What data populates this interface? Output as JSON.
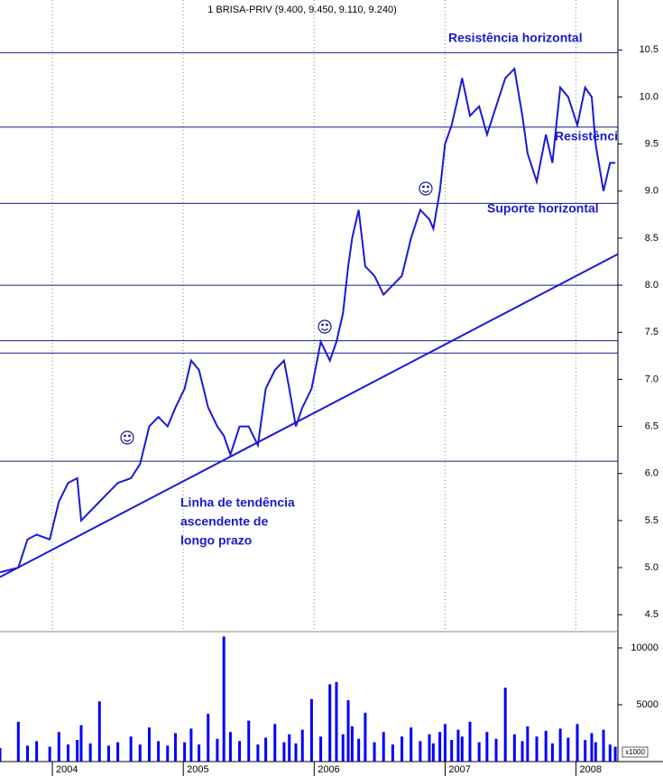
{
  "chart_data": [
    {
      "type": "line",
      "title": "1 BRISA-PRIV (9.400, 9.450, 9.110, 9.240)",
      "color": "#1a1ad8",
      "x": [
        2003.6,
        2003.74,
        2003.81,
        2003.88,
        2003.98,
        2004.05,
        2004.12,
        2004.19,
        2004.22,
        2004.29,
        2004.36,
        2004.43,
        2004.5,
        2004.6,
        2004.67,
        2004.74,
        2004.81,
        2004.88,
        2004.94,
        2005.01,
        2005.06,
        2005.12,
        2005.19,
        2005.26,
        2005.31,
        2005.36,
        2005.43,
        2005.5,
        2005.57,
        2005.63,
        2005.7,
        2005.77,
        2005.81,
        2005.86,
        2005.91,
        2005.98,
        2006.05,
        2006.12,
        2006.17,
        2006.22,
        2006.26,
        2006.29,
        2006.34,
        2006.39,
        2006.46,
        2006.53,
        2006.6,
        2006.67,
        2006.74,
        2006.81,
        2006.88,
        2006.91,
        2006.96,
        2007.0,
        2007.05,
        2007.1,
        2007.13,
        2007.19,
        2007.26,
        2007.32,
        2007.39,
        2007.46,
        2007.53,
        2007.59,
        2007.63,
        2007.7,
        2007.77,
        2007.82,
        2007.88,
        2007.94,
        2008.01,
        2008.07,
        2008.12,
        2008.15,
        2008.21,
        2008.26,
        2008.3
      ],
      "values": [
        4.95,
        5.0,
        5.3,
        5.35,
        5.3,
        5.7,
        5.9,
        5.95,
        5.5,
        5.6,
        5.7,
        5.8,
        5.9,
        5.95,
        6.1,
        6.5,
        6.6,
        6.5,
        6.7,
        6.9,
        7.2,
        7.1,
        6.7,
        6.5,
        6.4,
        6.2,
        6.5,
        6.5,
        6.3,
        6.9,
        7.1,
        7.2,
        6.9,
        6.5,
        6.7,
        6.9,
        7.4,
        7.2,
        7.4,
        7.7,
        8.2,
        8.5,
        8.8,
        8.2,
        8.1,
        7.9,
        8.0,
        8.1,
        8.5,
        8.8,
        8.7,
        8.6,
        9.0,
        9.5,
        9.7,
        10.0,
        10.2,
        9.8,
        9.9,
        9.6,
        9.9,
        10.2,
        10.3,
        9.8,
        9.4,
        9.1,
        9.6,
        9.3,
        10.1,
        10.0,
        9.7,
        10.1,
        10.0,
        9.5,
        9.0,
        9.3,
        9.3
      ],
      "xlim": [
        2003.6,
        2008.32
      ],
      "xticks": [
        2004,
        2005,
        2006,
        2007,
        2008
      ],
      "grid": true,
      "ylim": [
        4.32,
        11.03
      ],
      "yticks": [
        10.5,
        {
          "value": 10,
          "label": "10.0"
        },
        9.5,
        {
          "value": 9,
          "label": "9.0"
        },
        8.5,
        {
          "value": 8,
          "label": "8.0"
        },
        7.5,
        {
          "value": 7,
          "label": "7.0"
        },
        6.5,
        {
          "value": 6,
          "label": "6.0"
        },
        5.5,
        {
          "value": 5,
          "label": "5.0"
        },
        4.5
      ],
      "hlines": [
        10.47,
        9.68,
        8.87,
        8.0,
        7.41,
        7.28,
        6.13
      ],
      "hline_color": "#1a1a8c",
      "trendline": {
        "x": [
          2003.6,
          2008.32
        ],
        "values": [
          4.9,
          8.33
        ],
        "color": "#1a1ad8"
      },
      "annotations": [
        "Resistência horizontal",
        "Resistência",
        "Suporte horizontal",
        "Linha de tendência",
        "ascendente de",
        "longo prazo"
      ]
    },
    {
      "type": "bar",
      "color": "#0000ff",
      "unit_label": "x1000",
      "x": [
        2003.6,
        2003.74,
        2003.81,
        2003.88,
        2003.98,
        2004.05,
        2004.12,
        2004.19,
        2004.22,
        2004.29,
        2004.36,
        2004.43,
        2004.5,
        2004.6,
        2004.67,
        2004.74,
        2004.81,
        2004.88,
        2004.94,
        2005.01,
        2005.06,
        2005.12,
        2005.19,
        2005.26,
        2005.31,
        2005.36,
        2005.43,
        2005.5,
        2005.57,
        2005.63,
        2005.7,
        2005.77,
        2005.81,
        2005.86,
        2005.91,
        2005.98,
        2006.05,
        2006.12,
        2006.17,
        2006.22,
        2006.26,
        2006.29,
        2006.34,
        2006.39,
        2006.46,
        2006.53,
        2006.6,
        2006.67,
        2006.74,
        2006.81,
        2006.88,
        2006.91,
        2006.96,
        2007.0,
        2007.05,
        2007.1,
        2007.13,
        2007.19,
        2007.26,
        2007.32,
        2007.39,
        2007.46,
        2007.53,
        2007.59,
        2007.63,
        2007.7,
        2007.77,
        2007.82,
        2007.88,
        2007.94,
        2008.01,
        2008.07,
        2008.12,
        2008.15,
        2008.21,
        2008.26,
        2008.3
      ],
      "values": [
        1200,
        3500,
        1400,
        1800,
        1300,
        2600,
        1500,
        1900,
        3200,
        1600,
        5300,
        1400,
        1700,
        2200,
        1500,
        3000,
        1800,
        1400,
        2500,
        1700,
        2900,
        1500,
        4200,
        2000,
        11000,
        2600,
        1800,
        3600,
        1500,
        2100,
        3300,
        1700,
        2400,
        1600,
        2800,
        5500,
        2200,
        6800,
        7000,
        2400,
        5400,
        3100,
        2000,
        4300,
        1700,
        2600,
        1500,
        2200,
        3000,
        1800,
        2400,
        1600,
        2600,
        3300,
        1900,
        2800,
        2200,
        3500,
        1700,
        2600,
        2000,
        6500,
        2400,
        1800,
        3100,
        2200,
        2700,
        1600,
        2900,
        2100,
        3300,
        1900,
        2500,
        1700,
        2800,
        1500,
        1300
      ],
      "xlim": [
        2003.6,
        2008.32
      ],
      "xticks": [
        2004,
        2005,
        2006,
        2007,
        2008
      ],
      "ylim": [
        0,
        11430
      ],
      "yticks": [
        10000,
        5000
      ]
    }
  ]
}
